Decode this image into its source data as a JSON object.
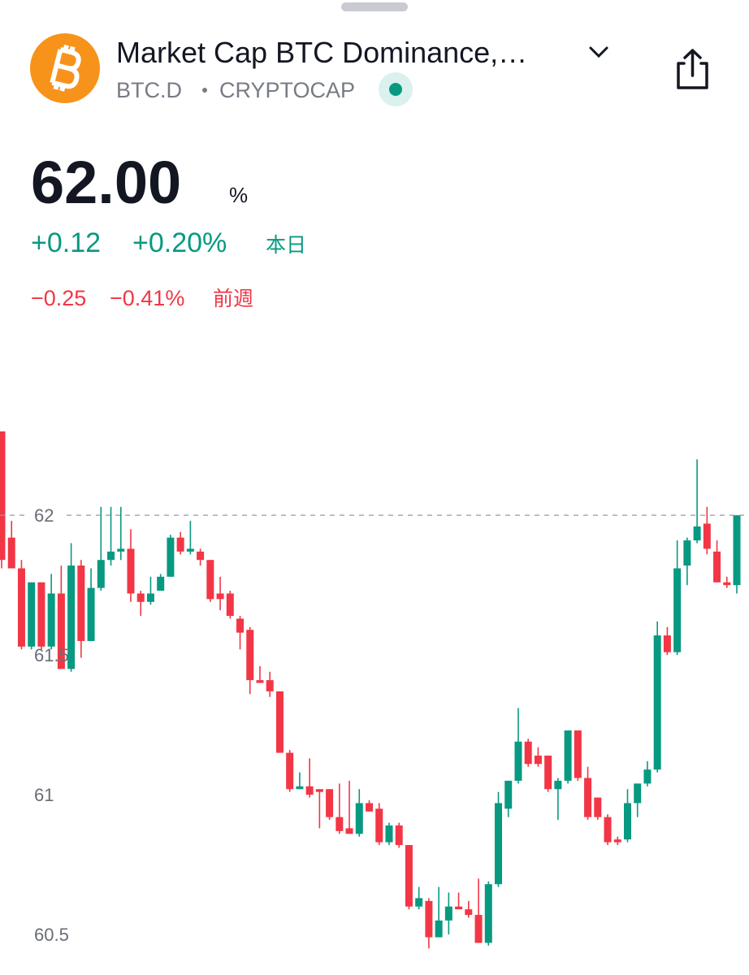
{
  "header": {
    "title": "Market Cap BTC Dominance,…",
    "symbol": "BTC.D",
    "exchange": "CRYPTOCAP"
  },
  "quote": {
    "price": "62.00",
    "unit": "%",
    "day": {
      "change": "+0.12",
      "percent": "+0.20%",
      "label": "本日"
    },
    "week": {
      "change": "−0.25",
      "percent": "−0.41%",
      "label": "前週"
    }
  },
  "chart_data": {
    "type": "candlestick",
    "open": [
      62.3,
      61.92,
      61.81,
      61.53,
      61.76,
      61.53,
      61.72,
      61.45,
      61.82,
      61.55,
      61.74,
      61.84,
      61.87,
      61.88,
      61.72,
      61.69,
      61.73,
      61.78,
      61.92,
      61.87,
      61.87,
      61.84,
      61.72,
      61.72,
      61.63,
      61.59,
      61.41,
      61.41,
      61.37,
      61.15,
      61.02,
      61.03,
      61.02,
      61.02,
      60.92,
      60.88,
      60.86,
      60.97,
      60.95,
      60.83,
      60.89,
      60.82,
      60.6,
      60.62,
      60.49,
      60.55,
      60.6,
      60.59,
      60.57,
      60.47,
      60.68,
      60.95,
      61.05,
      61.19,
      61.14,
      61.14,
      61.02,
      61.05,
      61.23,
      61.06,
      60.99,
      60.92,
      60.84,
      60.84,
      60.97,
      61.04,
      61.09,
      61.57,
      61.51,
      61.82,
      61.91,
      61.97,
      61.87,
      61.76,
      61.75
    ],
    "high": [
      62.3,
      61.98,
      61.84,
      61.76,
      61.76,
      61.79,
      61.82,
      61.9,
      61.84,
      61.81,
      62.03,
      62.03,
      62.03,
      61.95,
      61.73,
      61.78,
      61.79,
      61.93,
      61.94,
      61.98,
      61.88,
      61.84,
      61.78,
      61.73,
      61.64,
      61.6,
      61.46,
      61.44,
      61.37,
      61.16,
      61.08,
      61.13,
      61.02,
      61.02,
      61.04,
      61.05,
      61.02,
      60.98,
      60.97,
      60.9,
      60.9,
      60.82,
      60.67,
      60.63,
      60.67,
      60.65,
      60.65,
      60.62,
      60.7,
      60.69,
      61.01,
      61.05,
      61.31,
      61.2,
      61.17,
      61.14,
      61.06,
      61.23,
      61.23,
      61.1,
      60.99,
      60.93,
      60.85,
      61.02,
      61.04,
      61.12,
      61.62,
      61.6,
      61.91,
      61.92,
      62.2,
      62.03,
      61.91,
      61.78,
      62.0
    ],
    "low": [
      61.81,
      61.81,
      61.52,
      61.52,
      61.52,
      61.52,
      61.45,
      61.44,
      61.49,
      61.55,
      61.73,
      61.82,
      61.84,
      61.69,
      61.64,
      61.68,
      61.73,
      61.78,
      61.86,
      61.86,
      61.82,
      61.69,
      61.66,
      61.63,
      61.52,
      61.36,
      61.4,
      61.35,
      61.15,
      61.01,
      61.02,
      60.99,
      60.88,
      60.91,
      60.86,
      60.86,
      60.85,
      60.94,
      60.82,
      60.82,
      60.81,
      60.59,
      60.59,
      60.45,
      60.49,
      60.5,
      60.59,
      60.56,
      60.47,
      60.46,
      60.67,
      60.92,
      61.04,
      61.1,
      61.1,
      61.01,
      60.91,
      61.04,
      61.05,
      60.91,
      60.91,
      60.82,
      60.82,
      60.83,
      60.92,
      61.03,
      61.08,
      61.5,
      61.5,
      61.75,
      61.9,
      61.86,
      61.76,
      61.74,
      61.72
    ],
    "close": [
      61.84,
      61.81,
      61.53,
      61.76,
      61.53,
      61.72,
      61.45,
      61.82,
      61.55,
      61.74,
      61.84,
      61.87,
      61.88,
      61.72,
      61.69,
      61.72,
      61.78,
      61.92,
      61.87,
      61.88,
      61.84,
      61.7,
      61.7,
      61.64,
      61.58,
      61.41,
      61.4,
      61.37,
      61.15,
      61.02,
      61.03,
      61.0,
      61.01,
      60.92,
      60.87,
      60.86,
      60.97,
      60.94,
      60.83,
      60.89,
      60.82,
      60.6,
      60.63,
      60.49,
      60.55,
      60.6,
      60.59,
      60.57,
      60.47,
      60.68,
      60.97,
      61.05,
      61.19,
      61.11,
      61.11,
      61.02,
      61.05,
      61.23,
      61.06,
      60.92,
      60.92,
      60.83,
      60.83,
      60.97,
      61.04,
      61.09,
      61.57,
      61.51,
      61.81,
      61.91,
      61.96,
      61.88,
      61.76,
      61.75,
      62.0
    ],
    "ylim": [
      60.355,
      62.39
    ],
    "yticks": [
      62,
      61.5,
      61,
      60.5
    ],
    "up_color": "#089981",
    "down_color": "#f23645"
  }
}
